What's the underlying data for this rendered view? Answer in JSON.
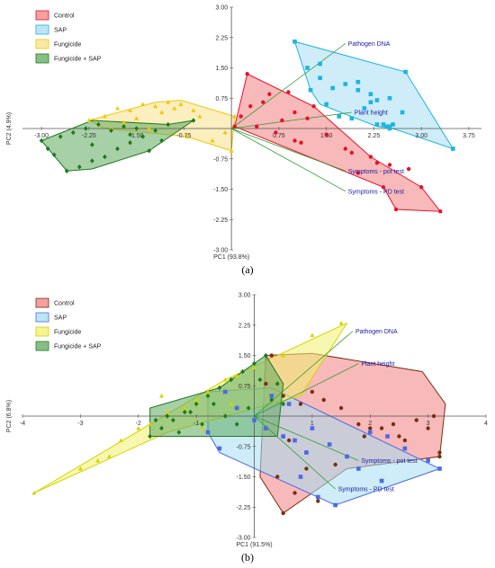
{
  "captions": [
    "(a)",
    "(b)"
  ],
  "colors": {
    "vector": "#2e9e2e",
    "vector_label": "#1a1aa6"
  },
  "chart_data": [
    {
      "type": "scatter",
      "title": "",
      "xlabel": "PC1 (93.8%)",
      "ylabel": "PC2 (4.9%)",
      "xlim": [
        -3.3,
        3.95
      ],
      "ylim": [
        -3.0,
        3.0
      ],
      "xticks": [
        -3.0,
        -2.25,
        -1.5,
        -0.75,
        0.75,
        1.5,
        2.25,
        3.0,
        3.75
      ],
      "xtick_labels": [
        "-3.00",
        "-2.25",
        "-1.50",
        "-0.75",
        "0.75",
        "1.50",
        "2.25",
        "3.00",
        "3.75"
      ],
      "yticks": [
        3.0,
        2.25,
        1.5,
        0.75,
        -0.75,
        -1.5,
        -2.25,
        -3.0
      ],
      "ytick_labels": [
        "3.00",
        "2.25",
        "1.50",
        "0.75",
        "-0.75",
        "-1.50",
        "-2.25",
        "-3.00"
      ],
      "grid": false,
      "legend": "top-left",
      "series": [
        {
          "name": "Control",
          "marker": "circle",
          "color": "#e8102a",
          "fill": "#f08080",
          "x": [
            0.25,
            0.05,
            0.15,
            0.3,
            0.5,
            0.6,
            0.8,
            1.0,
            1.2,
            1.3,
            1.1,
            1.5,
            1.8,
            2.2,
            2.5,
            0.4,
            0.7,
            1.0,
            1.5,
            1.9,
            2.3,
            2.8,
            3.0,
            2.4,
            2.0,
            2.6,
            3.3,
            0.9
          ],
          "y": [
            1.35,
            0.05,
            0.3,
            0.55,
            0.65,
            0.85,
            0.2,
            0.4,
            0.25,
            0.55,
            -0.35,
            -0.15,
            -0.5,
            -0.7,
            -0.9,
            0.05,
            -0.1,
            -0.3,
            -0.15,
            -0.6,
            -0.85,
            -1.0,
            -1.45,
            -1.45,
            -1.1,
            -2.0,
            -2.05,
            0.9
          ],
          "hull": [
            [
              0.25,
              1.35
            ],
            [
              0.05,
              0.05
            ],
            [
              2.4,
              -1.45
            ],
            [
              2.6,
              -2.0
            ],
            [
              3.3,
              -2.05
            ],
            [
              3.0,
              -1.45
            ],
            [
              2.2,
              -0.7
            ],
            [
              1.3,
              0.55
            ]
          ]
        },
        {
          "name": "SAP",
          "marker": "square",
          "color": "#1cb4e0",
          "fill": "#a6def2",
          "x": [
            1.0,
            1.2,
            1.4,
            1.6,
            1.8,
            2.0,
            2.2,
            2.5,
            2.75,
            3.5,
            1.5,
            1.7,
            1.9,
            2.1,
            2.3,
            2.5,
            2.7,
            2.3,
            2.4,
            2.45,
            2.5,
            2.55,
            1.25,
            1.4,
            2.2,
            2.0
          ],
          "y": [
            2.15,
            1.5,
            1.25,
            1.0,
            1.1,
            0.95,
            0.85,
            0.75,
            1.4,
            -0.5,
            0.6,
            0.3,
            0.25,
            0.5,
            0.7,
            0.05,
            0.4,
            0.1,
            0.1,
            0.05,
            0.0,
            0.1,
            0.95,
            1.6,
            0.65,
            1.15
          ],
          "hull": [
            [
              1.0,
              2.15
            ],
            [
              2.75,
              1.4
            ],
            [
              3.5,
              -0.5
            ],
            [
              2.55,
              0.0
            ],
            [
              2.3,
              0.05
            ],
            [
              1.4,
              0.6
            ],
            [
              1.25,
              0.95
            ]
          ]
        },
        {
          "name": "Fungicide",
          "marker": "triangle",
          "color": "#f0c800",
          "fill": "#f8e08a",
          "x": [
            -2.25,
            -2.0,
            -1.8,
            -1.6,
            -1.4,
            -1.2,
            -1.0,
            -0.8,
            -0.6,
            -0.9,
            -1.1,
            -0.5,
            -1.5,
            -1.7,
            -1.3,
            -0.7,
            -2.1,
            -1.9,
            -0.3,
            0.0,
            0.05,
            -0.1
          ],
          "y": [
            0.2,
            0.3,
            0.5,
            0.45,
            0.6,
            0.55,
            0.65,
            0.6,
            0.45,
            0.5,
            0.4,
            0.3,
            0.25,
            0.15,
            0.0,
            -0.2,
            0.1,
            0.0,
            -0.3,
            -0.55,
            0.3,
            -0.1
          ],
          "hull": [
            [
              -2.25,
              0.2
            ],
            [
              -1.2,
              0.65
            ],
            [
              -0.8,
              0.7
            ],
            [
              0.05,
              0.3
            ],
            [
              0.0,
              -0.55
            ],
            [
              -0.7,
              -0.2
            ],
            [
              -2.0,
              0.0
            ]
          ]
        },
        {
          "name": "Fungicide + SAP",
          "marker": "diamond",
          "color": "#1e7a1e",
          "fill": "#5faa5f",
          "x": [
            -3.0,
            -2.9,
            -2.6,
            -2.4,
            -2.2,
            -2.0,
            -1.8,
            -1.6,
            -1.4,
            -1.2,
            -1.0,
            -2.5,
            -2.3,
            -2.1,
            -1.9,
            -1.7,
            -1.5,
            -2.7,
            -2.8,
            -2.2,
            -1.3,
            -1.6,
            -0.6,
            -1.1
          ],
          "y": [
            -0.3,
            -0.5,
            -1.05,
            -0.95,
            -0.8,
            -0.7,
            -0.5,
            -0.35,
            -0.2,
            -0.05,
            0.1,
            -0.1,
            0.0,
            0.1,
            -0.05,
            0.05,
            0.0,
            -0.2,
            -0.65,
            -0.4,
            -0.55,
            -0.15,
            0.2,
            -0.3
          ],
          "hull": [
            [
              -3.0,
              -0.3
            ],
            [
              -2.6,
              -1.05
            ],
            [
              -2.2,
              -1.0
            ],
            [
              -1.3,
              -0.55
            ],
            [
              -0.6,
              0.2
            ],
            [
              -1.0,
              0.1
            ],
            [
              -2.2,
              0.2
            ]
          ]
        }
      ],
      "vectors": [
        {
          "label": "Pathogen DNA",
          "x": 1.8,
          "y": 2.1
        },
        {
          "label": "Plant height",
          "x": 1.9,
          "y": 0.4
        },
        {
          "label": "Symptoms - pot test",
          "x": 1.8,
          "y": -1.05
        },
        {
          "label": "Symptoms - PD test",
          "x": 1.8,
          "y": -1.55
        }
      ]
    },
    {
      "type": "scatter",
      "title": "",
      "xlabel": "PC1 (91.5%)",
      "ylabel": "PC2 (6.8%)",
      "xlim": [
        -4.0,
        4.0
      ],
      "ylim": [
        -3.0,
        3.0
      ],
      "xticks": [
        -4,
        -3,
        -2,
        -1,
        1,
        2,
        3,
        4
      ],
      "xtick_labels": [
        "-4",
        "-3",
        "-2",
        "-1",
        "1",
        "2",
        "3",
        "4"
      ],
      "yticks": [
        3.0,
        2.25,
        1.5,
        0.75,
        -0.75,
        -1.5,
        -2.25,
        -3.0
      ],
      "ytick_labels": [
        "3.00",
        "2.25",
        "1.50",
        "0.75",
        "-0.75",
        "-1.50",
        "-2.25",
        "-3.00"
      ],
      "grid": false,
      "legend": "top-left",
      "series": [
        {
          "name": "Control",
          "marker": "circle",
          "color": "#7a2e0e",
          "fill": "#f08080",
          "x": [
            0.3,
            0.5,
            0.8,
            1.0,
            1.2,
            1.5,
            1.8,
            2.2,
            2.5,
            2.8,
            3.0,
            3.1,
            3.2,
            0.6,
            0.9,
            1.4,
            1.9,
            2.4,
            0.4,
            0.7,
            1.1,
            1.6,
            2.0,
            2.6,
            0.2,
            0.5,
            3.2,
            0.9
          ],
          "y": [
            1.5,
            0.5,
            0.3,
            0.6,
            0.4,
            0.2,
            -0.2,
            -0.3,
            -0.5,
            -0.1,
            -0.3,
            0.0,
            -0.9,
            -0.6,
            -0.9,
            -1.2,
            -0.5,
            -0.2,
            -1.5,
            -1.9,
            -2.1,
            -1.0,
            -0.3,
            -0.6,
            0.8,
            -2.4,
            -1.0,
            -1.3
          ],
          "hull": [
            [
              0.2,
              1.5
            ],
            [
              1.0,
              1.55
            ],
            [
              2.9,
              1.1
            ],
            [
              3.3,
              0.3
            ],
            [
              3.2,
              -1.0
            ],
            [
              1.6,
              -1.3
            ],
            [
              0.5,
              -2.4
            ],
            [
              0.1,
              -1.5
            ]
          ]
        },
        {
          "name": "SAP",
          "marker": "square",
          "color": "#4a6ae8",
          "fill": "#a6def2",
          "x": [
            -0.5,
            -0.3,
            0.0,
            0.2,
            0.5,
            0.7,
            1.0,
            1.3,
            1.6,
            2.0,
            2.3,
            2.6,
            3.0,
            3.2,
            0.8,
            1.1,
            1.4,
            -0.8,
            -0.6,
            0.3,
            0.6,
            1.8,
            2.2,
            0.9
          ],
          "y": [
            0.6,
            0.2,
            -0.1,
            -0.3,
            -0.5,
            -0.6,
            -0.3,
            -0.7,
            -1.0,
            -0.4,
            -0.5,
            -0.8,
            -1.1,
            -1.3,
            -1.5,
            -2.0,
            -2.2,
            -0.4,
            -0.8,
            0.5,
            0.3,
            -1.3,
            -1.6,
            -0.9
          ],
          "hull": [
            [
              -0.8,
              0.6
            ],
            [
              0.3,
              0.7
            ],
            [
              3.2,
              -1.3
            ],
            [
              1.4,
              -2.2
            ],
            [
              -0.6,
              -0.9
            ],
            [
              -0.8,
              -0.4
            ]
          ]
        },
        {
          "name": "Fungicide",
          "marker": "triangle",
          "color": "#d4d400",
          "fill": "#f0f070",
          "x": [
            -3.8,
            -3.0,
            -2.5,
            -2.0,
            -1.5,
            -1.0,
            -0.5,
            0.0,
            0.5,
            1.0,
            1.5,
            -1.2,
            -0.8,
            -0.3,
            -1.8,
            -2.3,
            -0.9,
            -0.4,
            -1.6,
            -2.7
          ],
          "y": [
            -1.9,
            -1.3,
            -1.0,
            -0.3,
            0.1,
            0.4,
            0.9,
            1.2,
            1.5,
            2.0,
            2.3,
            0.2,
            0.6,
            1.0,
            -0.2,
            -0.6,
            -0.3,
            0.3,
            0.5,
            -1.1
          ],
          "hull": [
            [
              -3.8,
              -1.9
            ],
            [
              -0.5,
              0.9
            ],
            [
              1.0,
              1.9
            ],
            [
              1.6,
              2.3
            ],
            [
              0.8,
              0.5
            ],
            [
              -1.5,
              -0.4
            ]
          ]
        },
        {
          "name": "Fungicide + SAP",
          "marker": "diamond",
          "color": "#1e7a1e",
          "fill": "#5faa5f",
          "x": [
            -1.8,
            -1.6,
            -1.4,
            -1.2,
            -1.0,
            -0.8,
            -0.6,
            -0.4,
            -0.2,
            0.0,
            0.2,
            0.4,
            -1.3,
            -0.9,
            -0.5,
            -0.1,
            0.3,
            -1.7,
            -1.1,
            -0.7,
            0.1,
            0.5,
            -0.3,
            -1.5
          ],
          "y": [
            -0.5,
            -0.3,
            -0.1,
            0.1,
            0.3,
            0.5,
            0.7,
            0.9,
            1.1,
            1.3,
            1.5,
            0.8,
            -0.4,
            -0.2,
            0.0,
            0.2,
            0.4,
            -0.1,
            0.1,
            0.3,
            0.9,
            0.3,
            -0.2,
            0.0
          ],
          "hull": [
            [
              -1.8,
              -0.5
            ],
            [
              -1.8,
              0.2
            ],
            [
              -0.6,
              0.7
            ],
            [
              0.2,
              1.5
            ],
            [
              0.5,
              0.8
            ],
            [
              0.4,
              -0.5
            ],
            [
              -1.3,
              -0.5
            ]
          ]
        }
      ],
      "vectors": [
        {
          "label": "Pathogen DNA",
          "x": 1.7,
          "y": 2.1
        },
        {
          "label": "Plant height",
          "x": 1.8,
          "y": 1.3
        },
        {
          "label": "Symptoms - pot test",
          "x": 1.8,
          "y": -1.1
        },
        {
          "label": "Symptoms - PD test",
          "x": 1.4,
          "y": -1.8
        }
      ]
    }
  ]
}
